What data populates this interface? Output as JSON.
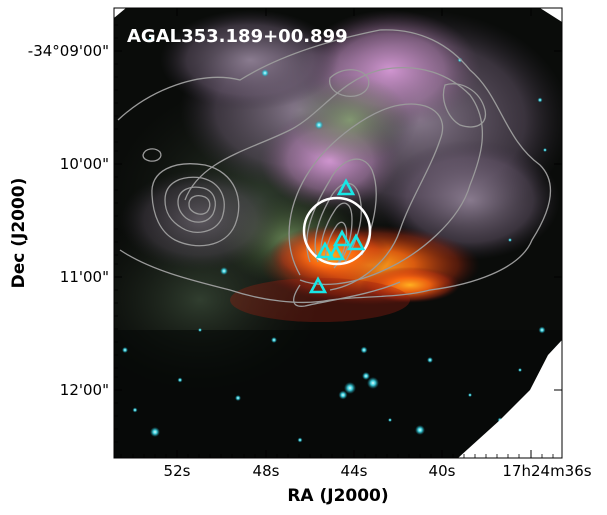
{
  "figure": {
    "title": "AGAL353.189+00.899",
    "xlabel": "RA (J2000)",
    "ylabel": "Dec (J2000)",
    "x_tick_labels": [
      "52s",
      "48s",
      "44s",
      "40s",
      "17h24m36s"
    ],
    "y_tick_labels": [
      "-34°09'00\"",
      "10'00\"",
      "11'00\"",
      "12'00\""
    ],
    "colors": {
      "contour": "#9a9a9a",
      "marker": "#19e6e6",
      "circle": "#ffffff",
      "title": "#ffffff",
      "background": "#000000"
    },
    "marker_shape": "triangle"
  }
}
